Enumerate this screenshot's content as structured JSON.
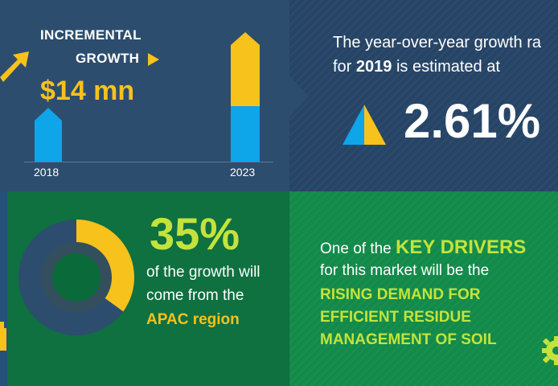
{
  "top_left": {
    "incremental_label_line1": "INCREMENTAL",
    "incremental_label_line2": "GROWTH",
    "amount": "$14 mn",
    "year_start": "2018",
    "year_end": "2023"
  },
  "top_right": {
    "line1": "The year-over-year growth ra",
    "line2_prefix": "for ",
    "line2_year": "2019",
    "line2_suffix": " is estimated at",
    "growth_rate": "2.61%"
  },
  "bottom_left": {
    "share": "35%",
    "line1": "of the growth will",
    "line2": "come from the",
    "region": "APAC region",
    "donut_share_fraction": 0.35
  },
  "bottom_right": {
    "prefix": "One of the ",
    "highlight": "KEY DRIVERS",
    "line2": "for this market will be the",
    "driver_line1": "RISING DEMAND FOR",
    "driver_line2": "EFFICIENT RESIDUE",
    "driver_line3": "MANAGEMENT OF SOIL"
  },
  "colors": {
    "navy": "#2d4d6e",
    "green": "#0f7040",
    "yellow": "#f7c21b",
    "blue": "#0ea5e9",
    "lime": "#c3e33c"
  }
}
